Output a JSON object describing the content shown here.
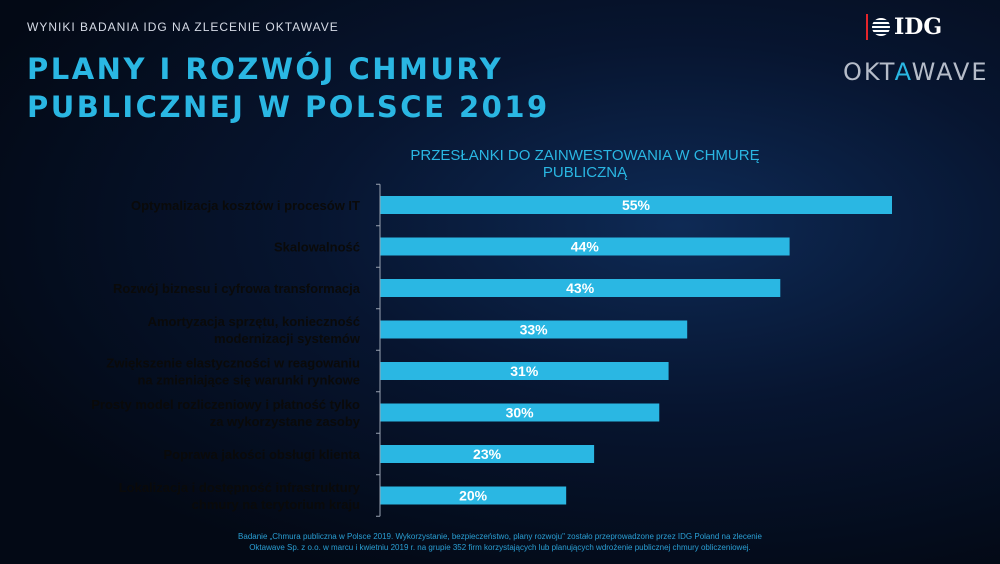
{
  "header": {
    "eyebrow": "WYNIKI BADANIA IDG NA ZLECENIE OKTAWAVE",
    "title_lines": [
      "PLANY I ROZWÓJ CHMURY",
      "PUBLICZNEJ W POLSCE 2019"
    ]
  },
  "logos": {
    "idg": "IDG",
    "oktawave_pre": "OKT",
    "oktawave_accent": "A",
    "oktawave_post": "WAVE"
  },
  "footnote": [
    "Badanie „Chmura publiczna w Polsce 2019. Wykorzystanie, bezpieczeństwo, plany rozwoju\"  zostało przeprowadzone przez IDG Poland  na zlecenie",
    "Oktawave Sp. z o.o. w marcu i kwietniu 2019 r. na grupie 352 firm korzystających lub planujących wdrożenie publicznej chmury obliczeniowej."
  ],
  "colors": {
    "accent": "#2ab7e3",
    "bar": "#2ab7e3",
    "label": "#0a0a0a",
    "axis": "#9aa3b2"
  },
  "chart_data": {
    "type": "bar",
    "orientation": "horizontal",
    "title": "PRZESŁANKI DO ZAINWESTOWANIA W CHMURĘ PUBLICZNĄ",
    "categories": [
      [
        "Optymalizacja kosztów i procesów IT"
      ],
      [
        "Skalowalność"
      ],
      [
        "Rozwój biznesu i cyfrowa transformacja"
      ],
      [
        "Amortyzacja sprzętu, konieczność",
        "modernizacji systemów"
      ],
      [
        "Zwiększenie elastyczności w reagowaniu",
        "na zmieniające się warunki rynkowe"
      ],
      [
        "Prosty model rozliczeniowy i płatność tylko",
        "za wykorzystane zasoby"
      ],
      [
        "Poprawa jakości obsługi klienta"
      ],
      [
        "Lokalizacja i dostępność infrastruktury",
        "chmury na terytorium kraju"
      ]
    ],
    "values": [
      55,
      44,
      43,
      33,
      31,
      30,
      23,
      20
    ],
    "value_labels": [
      "55%",
      "44%",
      "43%",
      "33%",
      "31%",
      "30%",
      "23%",
      "20%"
    ],
    "unit": "%",
    "xlim": [
      0,
      55
    ],
    "grid": false,
    "legend": "none"
  }
}
